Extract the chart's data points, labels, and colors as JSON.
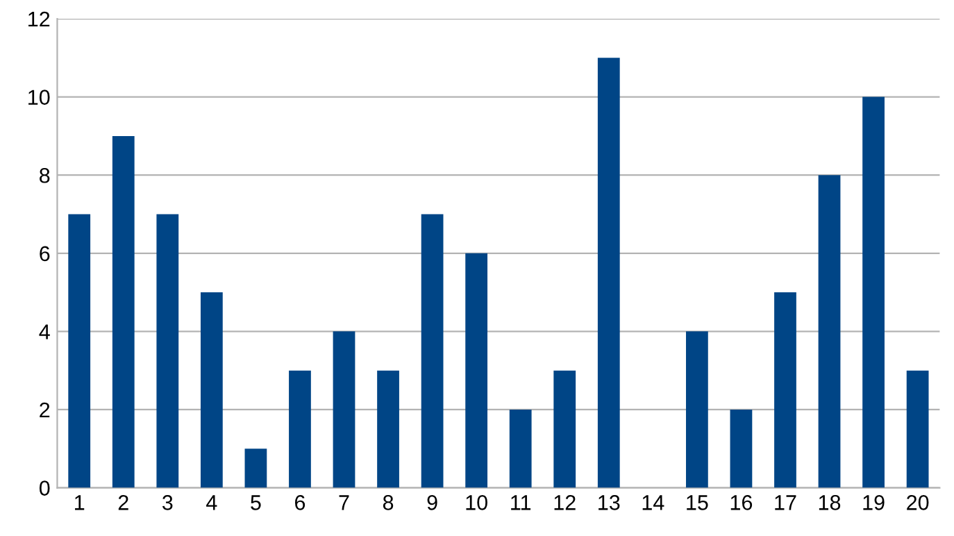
{
  "chart_data": {
    "type": "bar",
    "categories": [
      "1",
      "2",
      "3",
      "4",
      "5",
      "6",
      "7",
      "8",
      "9",
      "10",
      "11",
      "12",
      "13",
      "14",
      "15",
      "16",
      "17",
      "18",
      "19",
      "20"
    ],
    "values": [
      7,
      9,
      7,
      5,
      1,
      3,
      4,
      3,
      7,
      6,
      2,
      3,
      11,
      0,
      4,
      2,
      5,
      8,
      10,
      3
    ],
    "color": "#004586",
    "ylim": [
      0,
      12
    ],
    "yticks": [
      0,
      2,
      4,
      6,
      8,
      10,
      12
    ],
    "grid": "y",
    "legend": false
  }
}
